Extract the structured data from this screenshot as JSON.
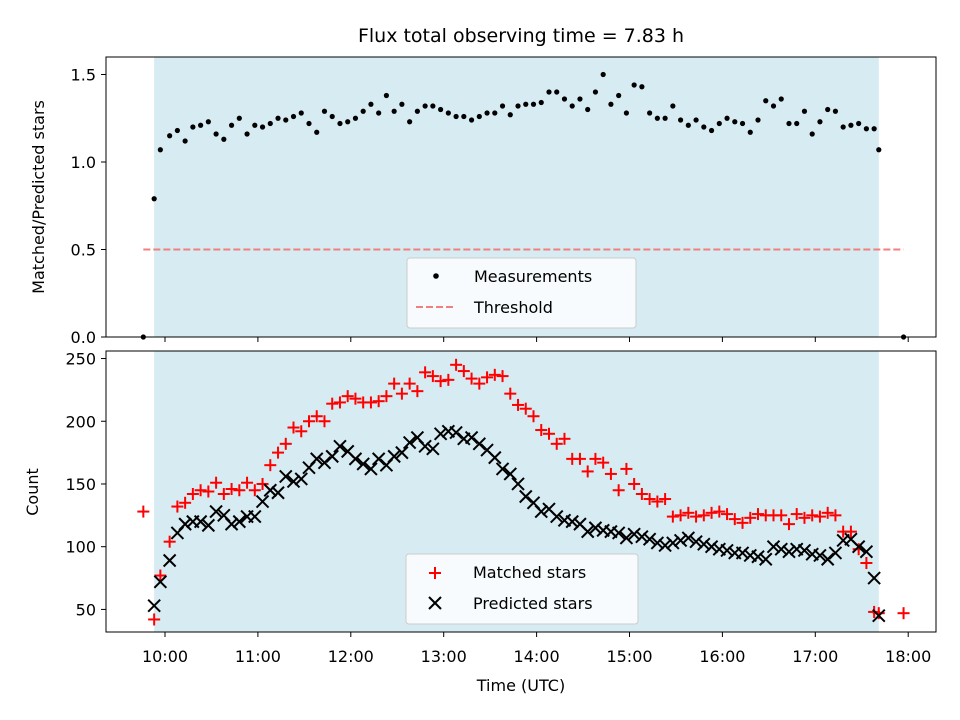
{
  "chart_data": [
    {
      "type": "scatter",
      "title": "Flux total observing time = 7.83 h",
      "xlabel": "",
      "ylabel": "Matched/Predicted stars",
      "ylim": [
        0,
        1.6
      ],
      "yticks": [
        "0.0",
        "0.5",
        "1.0",
        "1.5"
      ],
      "observing_window": [
        "09:53",
        "17:41"
      ],
      "legend_position": "bottom-center",
      "grid": false,
      "series": [
        {
          "name": "Measurements",
          "marker": "dot",
          "color": "#000000",
          "x": [
            "09:46",
            "09:53",
            "09:57",
            "10:03",
            "10:08",
            "10:13",
            "10:18",
            "10:23",
            "10:28",
            "10:33",
            "10:38",
            "10:43",
            "10:48",
            "10:53",
            "10:58",
            "11:03",
            "11:08",
            "11:13",
            "11:18",
            "11:23",
            "11:28",
            "11:33",
            "11:38",
            "11:43",
            "11:48",
            "11:53",
            "11:58",
            "12:03",
            "12:08",
            "12:13",
            "12:18",
            "12:23",
            "12:28",
            "12:33",
            "12:38",
            "12:43",
            "12:48",
            "12:53",
            "12:58",
            "13:03",
            "13:08",
            "13:13",
            "13:18",
            "13:23",
            "13:28",
            "13:33",
            "13:38",
            "13:43",
            "13:48",
            "13:53",
            "13:58",
            "14:03",
            "14:08",
            "14:13",
            "14:18",
            "14:23",
            "14:28",
            "14:33",
            "14:38",
            "14:43",
            "14:48",
            "14:53",
            "14:58",
            "15:03",
            "15:08",
            "15:13",
            "15:18",
            "15:23",
            "15:28",
            "15:33",
            "15:38",
            "15:43",
            "15:48",
            "15:53",
            "15:58",
            "16:03",
            "16:08",
            "16:13",
            "16:18",
            "16:23",
            "16:28",
            "16:33",
            "16:38",
            "16:43",
            "16:48",
            "16:53",
            "16:58",
            "17:03",
            "17:08",
            "17:13",
            "17:18",
            "17:23",
            "17:28",
            "17:33",
            "17:38",
            "17:41",
            "17:57"
          ],
          "y": [
            0.0,
            0.79,
            1.07,
            1.15,
            1.18,
            1.12,
            1.2,
            1.21,
            1.23,
            1.16,
            1.13,
            1.21,
            1.25,
            1.16,
            1.21,
            1.2,
            1.22,
            1.25,
            1.24,
            1.26,
            1.28,
            1.22,
            1.17,
            1.29,
            1.26,
            1.22,
            1.23,
            1.25,
            1.29,
            1.33,
            1.28,
            1.38,
            1.29,
            1.33,
            1.23,
            1.29,
            1.32,
            1.32,
            1.3,
            1.28,
            1.26,
            1.26,
            1.24,
            1.26,
            1.28,
            1.28,
            1.32,
            1.27,
            1.32,
            1.33,
            1.33,
            1.34,
            1.4,
            1.4,
            1.36,
            1.32,
            1.36,
            1.3,
            1.4,
            1.5,
            1.33,
            1.38,
            1.28,
            1.44,
            1.43,
            1.28,
            1.25,
            1.25,
            1.32,
            1.24,
            1.21,
            1.24,
            1.2,
            1.18,
            1.22,
            1.25,
            1.23,
            1.22,
            1.17,
            1.24,
            1.35,
            1.32,
            1.36,
            1.22,
            1.22,
            1.29,
            1.16,
            1.23,
            1.3,
            1.29,
            1.2,
            1.21,
            1.22,
            1.19,
            1.19,
            1.07,
            0.0
          ]
        },
        {
          "name": "Threshold",
          "marker": "dashed-line",
          "color": "#f08080",
          "x": [
            "09:46",
            "17:57"
          ],
          "y": [
            0.5,
            0.5
          ]
        }
      ]
    },
    {
      "type": "scatter",
      "title": "",
      "xlabel": "Time (UTC)",
      "ylabel": "Count",
      "ylim": [
        32,
        256
      ],
      "yticks": [
        "50",
        "100",
        "150",
        "200",
        "250"
      ],
      "xticks": [
        "10:00",
        "11:00",
        "12:00",
        "13:00",
        "14:00",
        "15:00",
        "16:00",
        "17:00",
        "18:00"
      ],
      "observing_window": [
        "09:53",
        "17:41"
      ],
      "legend_position": "bottom-center",
      "grid": false,
      "series": [
        {
          "name": "Matched stars",
          "marker": "plus",
          "color": "#ff0000",
          "x": [
            "09:46",
            "09:53",
            "09:57",
            "10:03",
            "10:08",
            "10:13",
            "10:18",
            "10:23",
            "10:28",
            "10:33",
            "10:38",
            "10:43",
            "10:48",
            "10:53",
            "10:58",
            "11:03",
            "11:08",
            "11:13",
            "11:18",
            "11:23",
            "11:28",
            "11:33",
            "11:38",
            "11:43",
            "11:48",
            "11:53",
            "11:58",
            "12:03",
            "12:08",
            "12:13",
            "12:18",
            "12:23",
            "12:28",
            "12:33",
            "12:38",
            "12:43",
            "12:48",
            "12:53",
            "12:58",
            "13:03",
            "13:08",
            "13:13",
            "13:18",
            "13:23",
            "13:28",
            "13:33",
            "13:38",
            "13:43",
            "13:48",
            "13:53",
            "13:58",
            "14:03",
            "14:08",
            "14:13",
            "14:18",
            "14:23",
            "14:28",
            "14:33",
            "14:38",
            "14:43",
            "14:48",
            "14:53",
            "14:58",
            "15:03",
            "15:08",
            "15:13",
            "15:18",
            "15:23",
            "15:28",
            "15:33",
            "15:38",
            "15:43",
            "15:48",
            "15:53",
            "15:58",
            "16:03",
            "16:08",
            "16:13",
            "16:18",
            "16:23",
            "16:28",
            "16:33",
            "16:38",
            "16:43",
            "16:48",
            "16:53",
            "16:58",
            "17:03",
            "17:08",
            "17:13",
            "17:18",
            "17:23",
            "17:28",
            "17:33",
            "17:38",
            "17:41",
            "17:57"
          ],
          "y": [
            128,
            42,
            77,
            104,
            132,
            135,
            142,
            145,
            144,
            151,
            142,
            146,
            145,
            151,
            145,
            150,
            165,
            175,
            182,
            195,
            192,
            200,
            204,
            200,
            214,
            215,
            220,
            218,
            215,
            215,
            216,
            220,
            230,
            222,
            230,
            224,
            239,
            236,
            232,
            233,
            245,
            240,
            234,
            230,
            235,
            237,
            236,
            222,
            213,
            210,
            204,
            193,
            190,
            182,
            186,
            170,
            170,
            160,
            170,
            167,
            158,
            145,
            162,
            150,
            142,
            138,
            136,
            138,
            124,
            125,
            127,
            124,
            125,
            127,
            128,
            126,
            122,
            119,
            123,
            126,
            125,
            125,
            125,
            118,
            126,
            123,
            125,
            124,
            127,
            125,
            112,
            112,
            98,
            87,
            48,
            47,
            47
          ]
        },
        {
          "name": "Predicted stars",
          "marker": "x",
          "color": "#000000",
          "x": [
            "09:53",
            "09:57",
            "10:03",
            "10:08",
            "10:13",
            "10:18",
            "10:23",
            "10:28",
            "10:33",
            "10:38",
            "10:43",
            "10:48",
            "10:53",
            "10:58",
            "11:03",
            "11:08",
            "11:13",
            "11:18",
            "11:23",
            "11:28",
            "11:33",
            "11:38",
            "11:43",
            "11:48",
            "11:53",
            "11:58",
            "12:03",
            "12:08",
            "12:13",
            "12:18",
            "12:23",
            "12:28",
            "12:33",
            "12:38",
            "12:43",
            "12:48",
            "12:53",
            "12:58",
            "13:03",
            "13:08",
            "13:13",
            "13:18",
            "13:23",
            "13:28",
            "13:33",
            "13:38",
            "13:43",
            "13:48",
            "13:53",
            "13:58",
            "14:03",
            "14:08",
            "14:13",
            "14:18",
            "14:23",
            "14:28",
            "14:33",
            "14:38",
            "14:43",
            "14:48",
            "14:53",
            "14:58",
            "15:03",
            "15:08",
            "15:13",
            "15:18",
            "15:23",
            "15:28",
            "15:33",
            "15:38",
            "15:43",
            "15:48",
            "15:53",
            "15:58",
            "16:03",
            "16:08",
            "16:13",
            "16:18",
            "16:23",
            "16:28",
            "16:33",
            "16:38",
            "16:43",
            "16:48",
            "16:53",
            "16:58",
            "17:03",
            "17:08",
            "17:13",
            "17:18",
            "17:23",
            "17:28",
            "17:33",
            "17:38",
            "17:41"
          ],
          "y": [
            53,
            72,
            89,
            111,
            118,
            120,
            120,
            117,
            128,
            125,
            118,
            120,
            124,
            124,
            136,
            145,
            143,
            156,
            152,
            154,
            163,
            170,
            167,
            172,
            180,
            176,
            170,
            166,
            162,
            170,
            165,
            172,
            175,
            183,
            187,
            180,
            178,
            190,
            192,
            191,
            186,
            187,
            182,
            177,
            171,
            162,
            158,
            150,
            140,
            135,
            128,
            130,
            124,
            121,
            120,
            118,
            112,
            115,
            113,
            112,
            111,
            107,
            110,
            108,
            106,
            103,
            101,
            103,
            105,
            107,
            104,
            102,
            100,
            98,
            97,
            95,
            95,
            93,
            92,
            90,
            100,
            98,
            96,
            98,
            97,
            94,
            93,
            90,
            95,
            105,
            106,
            100,
            96,
            75,
            45
          ]
        }
      ]
    }
  ]
}
